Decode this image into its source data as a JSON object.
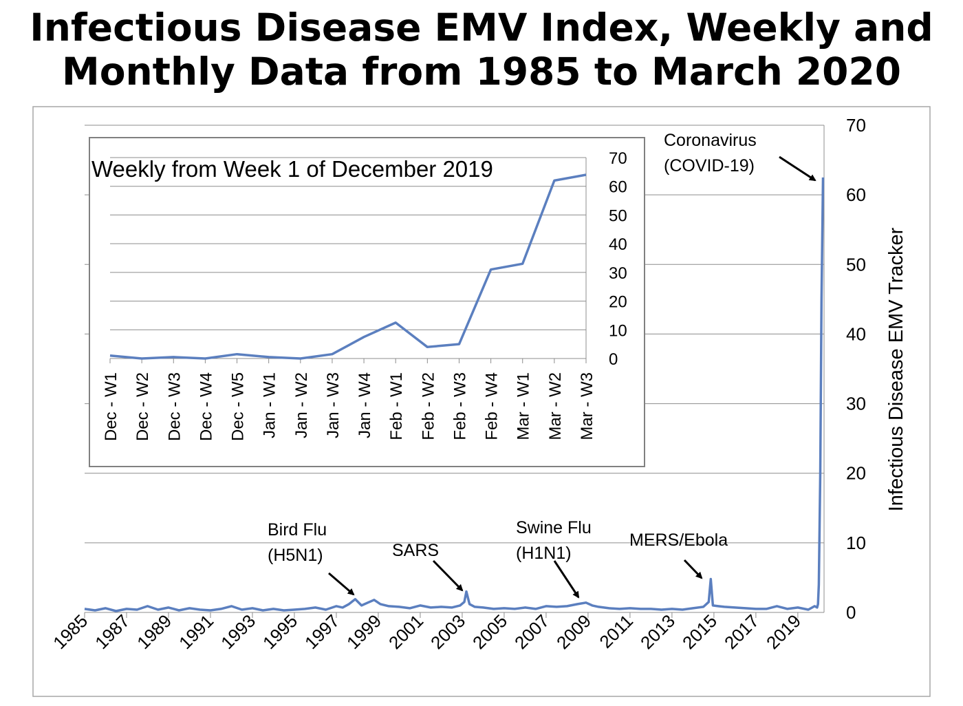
{
  "title_line1": "Infectious Disease EMV Index, Weekly and",
  "title_line2": "Monthly Data from 1985 to March 2020",
  "colors": {
    "series": "#5b7fbf",
    "grid": "#8c8c8c",
    "frame": "#a6a6a6"
  },
  "chart_data": [
    {
      "type": "line",
      "ylabel": "Infectious Disease EMV Tracker",
      "y_axis_side": "right",
      "ylim": [
        0,
        70
      ],
      "y_ticks": [
        0,
        10,
        20,
        30,
        40,
        50,
        60,
        70
      ],
      "xlim": [
        1985,
        2020.25
      ],
      "x_tick_labels": [
        "1985",
        "1987",
        "1989",
        "1991",
        "1993",
        "1995",
        "1997",
        "1999",
        "2001",
        "2003",
        "2005",
        "2007",
        "2009",
        "2011",
        "2013",
        "2015",
        "2017",
        "2019"
      ],
      "grid": true,
      "series": [
        {
          "x": [
            1985,
            1985.5,
            1986,
            1986.5,
            1987,
            1987.5,
            1988,
            1988.5,
            1989,
            1989.5,
            1990,
            1990.5,
            1991,
            1991.5,
            1992,
            1992.5,
            1993,
            1993.5,
            1994,
            1994.5,
            1995,
            1995.5,
            1996,
            1996.5,
            1997,
            1997.3,
            1997.6,
            1997.9,
            1998.2,
            1998.5,
            1998.8,
            1999.1,
            1999.5,
            2000,
            2000.5,
            2001,
            2001.5,
            2002,
            2002.5,
            2002.9,
            2003.1,
            2003.2,
            2003.35,
            2003.6,
            2004,
            2004.5,
            2005,
            2005.5,
            2006,
            2006.5,
            2007,
            2007.5,
            2008,
            2008.5,
            2008.9,
            2009.2,
            2009.5,
            2010,
            2010.5,
            2011,
            2011.5,
            2012,
            2012.5,
            2013,
            2013.5,
            2014,
            2014.5,
            2014.75,
            2014.85,
            2014.95,
            2015.2,
            2015.5,
            2016,
            2016.5,
            2017,
            2017.5,
            2018,
            2018.5,
            2019,
            2019.5,
            2019.8,
            2019.92,
            2019.96,
            2020.0,
            2020.07,
            2020.13,
            2020.2
          ],
          "values": [
            0.5,
            0.3,
            0.6,
            0.2,
            0.5,
            0.4,
            0.9,
            0.4,
            0.7,
            0.3,
            0.6,
            0.4,
            0.3,
            0.5,
            0.9,
            0.4,
            0.6,
            0.3,
            0.5,
            0.3,
            0.4,
            0.5,
            0.7,
            0.4,
            0.9,
            0.7,
            1.2,
            1.9,
            1.0,
            1.4,
            1.8,
            1.2,
            0.9,
            0.8,
            0.6,
            1.0,
            0.7,
            0.8,
            0.7,
            1.0,
            1.5,
            3.0,
            1.2,
            0.8,
            0.7,
            0.5,
            0.6,
            0.5,
            0.7,
            0.5,
            0.9,
            0.8,
            0.9,
            1.2,
            1.4,
            1.0,
            0.8,
            0.6,
            0.5,
            0.6,
            0.5,
            0.5,
            0.4,
            0.5,
            0.4,
            0.6,
            0.8,
            1.5,
            4.8,
            1.0,
            0.9,
            0.8,
            0.7,
            0.6,
            0.5,
            0.5,
            0.9,
            0.5,
            0.7,
            0.4,
            0.9,
            0.7,
            1.2,
            4.0,
            20.0,
            45.0,
            62.5
          ]
        }
      ],
      "annotations": [
        {
          "lines": [
            "Bird Flu",
            "(H5N1)"
          ],
          "x": 1998,
          "y": 2.0
        },
        {
          "lines": [
            "SARS"
          ],
          "x": 2003.2,
          "y": 3.0
        },
        {
          "lines": [
            "Swine Flu",
            "(H1N1)"
          ],
          "x": 2009.0,
          "y": 1.5
        },
        {
          "lines": [
            "MERS/Ebola"
          ],
          "x": 2014.85,
          "y": 4.8
        },
        {
          "lines": [
            "Coronavirus",
            "(COVID-19)"
          ],
          "x": 2020.15,
          "y": 62.5
        }
      ]
    },
    {
      "type": "line",
      "title": "Weekly from Week 1 of December 2019",
      "ylim": [
        0,
        70
      ],
      "y_ticks": [
        0,
        10,
        20,
        30,
        40,
        50,
        60,
        70
      ],
      "grid": true,
      "categories": [
        "Dec - W1",
        "Dec - W2",
        "Dec - W3",
        "Dec - W4",
        "Dec - W5",
        "Jan - W1",
        "Jan - W2",
        "Jan - W3",
        "Jan - W4",
        "Feb - W1",
        "Feb - W2",
        "Feb - W3",
        "Feb - W4",
        "Mar - W1",
        "Mar - W2",
        "Mar - W3"
      ],
      "series": [
        {
          "values": [
            1,
            0,
            0.5,
            0,
            1.5,
            0.5,
            0,
            1.5,
            7.5,
            12.5,
            4,
            5,
            31,
            33,
            62,
            64
          ]
        }
      ]
    }
  ]
}
